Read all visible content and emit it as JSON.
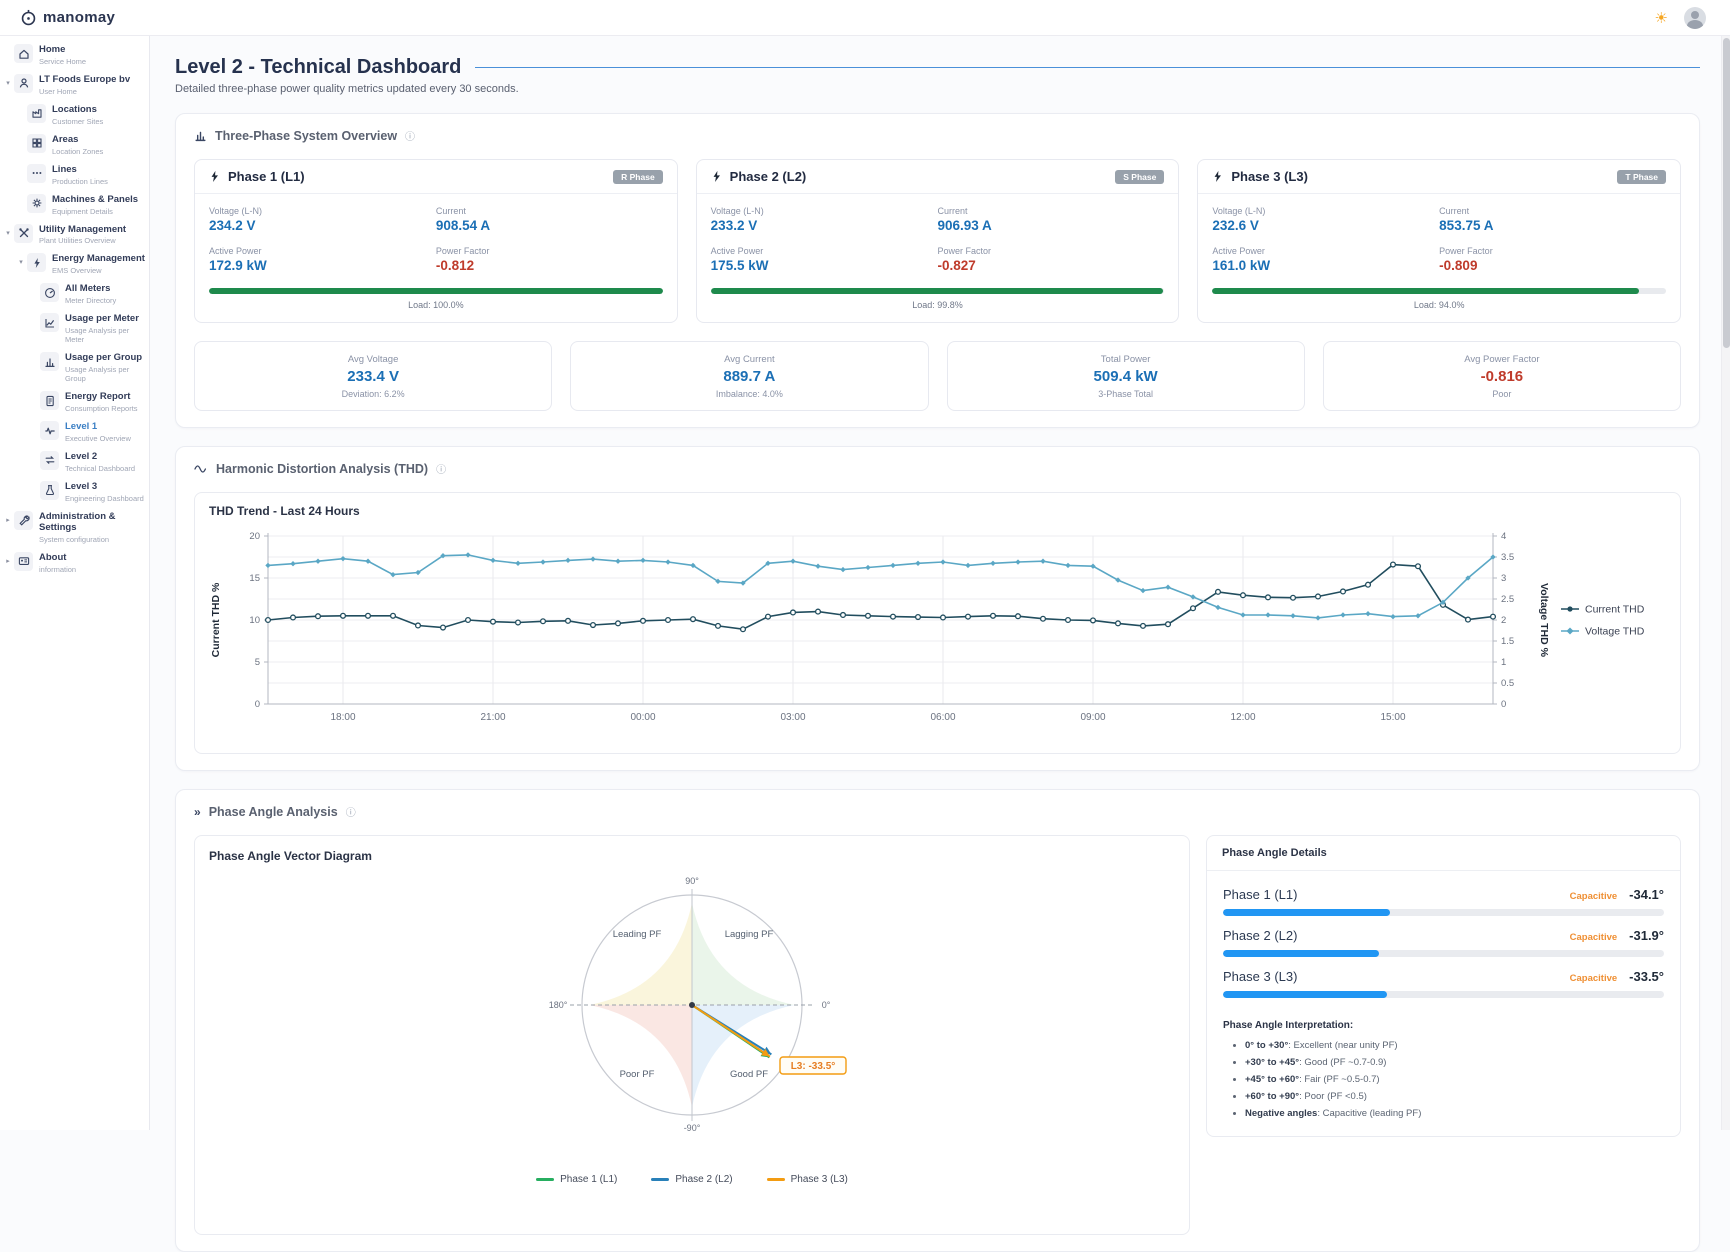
{
  "app": {
    "brand": "manomay"
  },
  "topbar": {
    "theme_icon": "☀"
  },
  "colors": {
    "accent_blue": "#4a90d9",
    "value_blue": "#1b6fb5",
    "value_red": "#bf3b2b",
    "load_green": "#1e8a4c",
    "bar_blue": "#2196f3",
    "capacitive_orange": "#ef8f33",
    "series_current": "#214d5e",
    "series_voltage": "#5aa7c5",
    "arrow_l1": "#27ae60",
    "arrow_l2": "#2980b9",
    "arrow_l3": "#f39c12"
  },
  "sidebar": {
    "items": [
      {
        "title": "Home",
        "subtitle": "Service Home",
        "icon": "home",
        "level": 0,
        "chevron": ""
      },
      {
        "title": "LT Foods Europe bv",
        "subtitle": "User Home",
        "icon": "user",
        "level": 0,
        "chevron": "down"
      },
      {
        "title": "Locations",
        "subtitle": "Customer Sites",
        "icon": "locations",
        "level": 1,
        "chevron": ""
      },
      {
        "title": "Areas",
        "subtitle": "Location Zones",
        "icon": "areas",
        "level": 1,
        "chevron": ""
      },
      {
        "title": "Lines",
        "subtitle": "Production Lines",
        "icon": "lines",
        "level": 1,
        "chevron": ""
      },
      {
        "title": "Machines & Panels",
        "subtitle": "Equipment Details",
        "icon": "machines",
        "level": 1,
        "chevron": ""
      },
      {
        "title": "Utility Management",
        "subtitle": "Plant Utilities Overview",
        "icon": "utility",
        "level": 0,
        "chevron": "down"
      },
      {
        "title": "Energy Management",
        "subtitle": "EMS Overview",
        "icon": "energy",
        "level": 1,
        "chevron": "down"
      },
      {
        "title": "All Meters",
        "subtitle": "Meter Directory",
        "icon": "meters",
        "level": 2,
        "chevron": ""
      },
      {
        "title": "Usage per Meter",
        "subtitle": "Usage Analysis per Meter",
        "icon": "usage-meter",
        "level": 2,
        "chevron": ""
      },
      {
        "title": "Usage per Group",
        "subtitle": "Usage Analysis per Group",
        "icon": "usage-group",
        "level": 2,
        "chevron": ""
      },
      {
        "title": "Energy Report",
        "subtitle": "Consumption Reports",
        "icon": "report",
        "level": 2,
        "chevron": ""
      },
      {
        "title": "Level 1",
        "subtitle": "Executive Overview",
        "icon": "wave",
        "level": 2,
        "chevron": "",
        "highlight": true
      },
      {
        "title": "Level 2",
        "subtitle": "Technical Dashboard",
        "icon": "swap",
        "level": 2,
        "chevron": ""
      },
      {
        "title": "Level 3",
        "subtitle": "Engineering Dashboard",
        "icon": "flask",
        "level": 2,
        "chevron": ""
      },
      {
        "title": "Administration & Settings",
        "subtitle": "System configuration",
        "icon": "wrench",
        "level": 0,
        "chevron": "right"
      },
      {
        "title": "About",
        "subtitle": "information",
        "icon": "card",
        "level": 0,
        "chevron": "right"
      }
    ]
  },
  "page": {
    "title": "Level 2 - Technical Dashboard",
    "subtitle": "Detailed three-phase power quality metrics updated every 30 seconds."
  },
  "overview": {
    "section_title": "Three-Phase System Overview",
    "labels": {
      "voltage": "Voltage (L-N)",
      "current": "Current",
      "power": "Active Power",
      "pf": "Power Factor"
    },
    "phases": [
      {
        "name": "Phase 1 (L1)",
        "badge": "R Phase",
        "voltage": "234.2 V",
        "current": "908.54 A",
        "power": "172.9 kW",
        "pf": "-0.812",
        "load_label": "Load: 100.0%",
        "load_pct": 100.0
      },
      {
        "name": "Phase 2 (L2)",
        "badge": "S Phase",
        "voltage": "233.2 V",
        "current": "906.93 A",
        "power": "175.5 kW",
        "pf": "-0.827",
        "load_label": "Load: 99.8%",
        "load_pct": 99.8
      },
      {
        "name": "Phase 3 (L3)",
        "badge": "T Phase",
        "voltage": "232.6 V",
        "current": "853.75 A",
        "power": "161.0 kW",
        "pf": "-0.809",
        "load_label": "Load: 94.0%",
        "load_pct": 94.0
      }
    ],
    "summary": [
      {
        "label": "Avg Voltage",
        "value": "233.4 V",
        "sub": "Deviation: 6.2%",
        "tone": "blue"
      },
      {
        "label": "Avg Current",
        "value": "889.7 A",
        "sub": "Imbalance: 4.0%",
        "tone": "blue"
      },
      {
        "label": "Total Power",
        "value": "509.4 kW",
        "sub": "3-Phase Total",
        "tone": "blue"
      },
      {
        "label": "Avg Power Factor",
        "value": "-0.816",
        "sub": "Poor",
        "tone": "red"
      }
    ]
  },
  "thd": {
    "section_title": "Harmonic Distortion Analysis (THD)",
    "chart_title": "THD Trend - Last 24 Hours"
  },
  "chart_data": {
    "type": "line",
    "title": "THD Trend - Last 24 Hours",
    "n_points": 50,
    "x_tick_labels": [
      "18:00",
      "21:00",
      "00:00",
      "03:00",
      "06:00",
      "09:00",
      "12:00",
      "15:00"
    ],
    "x_tick_indices": [
      3,
      9,
      15,
      21,
      27,
      33,
      39,
      45
    ],
    "left_axis": {
      "label": "Current THD %",
      "min": 0,
      "max": 20,
      "ticks": [
        0,
        5,
        10,
        15,
        20
      ]
    },
    "right_axis": {
      "label": "Voltage THD %",
      "min": 0,
      "max": 4,
      "ticks": [
        0,
        0.5,
        1,
        1.5,
        2,
        2.5,
        3,
        3.5,
        4
      ]
    },
    "grid": true,
    "legend_position": "right",
    "series": [
      {
        "name": "Current THD",
        "axis": "left",
        "marker": "circle",
        "values": [
          10.0,
          10.3,
          10.45,
          10.5,
          10.5,
          10.5,
          9.35,
          9.1,
          10.0,
          9.8,
          9.7,
          9.85,
          9.9,
          9.4,
          9.6,
          9.9,
          10.0,
          10.1,
          9.3,
          8.9,
          10.4,
          10.9,
          11.0,
          10.6,
          10.5,
          10.4,
          10.35,
          10.3,
          10.4,
          10.5,
          10.45,
          10.15,
          10.0,
          9.95,
          9.6,
          9.3,
          9.5,
          11.4,
          13.35,
          12.95,
          12.7,
          12.65,
          12.8,
          13.4,
          14.2,
          16.6,
          16.4,
          11.8,
          10.05,
          10.4
        ]
      },
      {
        "name": "Voltage THD",
        "axis": "right",
        "marker": "diamond",
        "values": [
          3.3,
          3.34,
          3.4,
          3.46,
          3.4,
          3.08,
          3.13,
          3.53,
          3.55,
          3.42,
          3.35,
          3.38,
          3.42,
          3.45,
          3.4,
          3.42,
          3.38,
          3.3,
          2.92,
          2.88,
          3.35,
          3.4,
          3.28,
          3.2,
          3.25,
          3.3,
          3.35,
          3.38,
          3.3,
          3.35,
          3.38,
          3.4,
          3.3,
          3.28,
          2.95,
          2.7,
          2.78,
          2.55,
          2.3,
          2.12,
          2.12,
          2.1,
          2.05,
          2.12,
          2.15,
          2.08,
          2.1,
          2.42,
          3.0,
          3.5
        ]
      }
    ]
  },
  "phase_angle": {
    "section_title": "Phase Angle Analysis",
    "vector": {
      "title": "Phase Angle Vector Diagram",
      "axis_labels": {
        "top": "90°",
        "right": "0°",
        "left": "180°",
        "bottom": "-90°"
      },
      "quadrants": {
        "top_left": "Leading PF",
        "top_right": "Lagging PF",
        "bottom_left": "Poor PF",
        "bottom_right": "Good PF"
      },
      "annotation": "L3: -33.5°",
      "legend": [
        "Phase 1 (L1)",
        "Phase 2 (L2)",
        "Phase 3 (L3)"
      ]
    },
    "details": {
      "title": "Phase Angle Details",
      "phases": [
        {
          "name": "Phase 1 (L1)",
          "state": "Capacitive",
          "angle": "-34.1°",
          "angle_deg": -34.1
        },
        {
          "name": "Phase 2 (L2)",
          "state": "Capacitive",
          "angle": "-31.9°",
          "angle_deg": -31.9
        },
        {
          "name": "Phase 3 (L3)",
          "state": "Capacitive",
          "angle": "-33.5°",
          "angle_deg": -33.5
        }
      ],
      "interpretation_title": "Phase Angle Interpretation:",
      "interpretation": [
        {
          "range": "0° to +30°",
          "desc": ": Excellent (near unity PF)"
        },
        {
          "range": "+30° to +45°",
          "desc": ": Good (PF ~0.7-0.9)"
        },
        {
          "range": "+45° to +60°",
          "desc": ": Fair (PF ~0.5-0.7)"
        },
        {
          "range": "+60° to +90°",
          "desc": ": Poor (PF <0.5)"
        },
        {
          "range": "Negative angles",
          "desc": ": Capacitive (leading PF)"
        }
      ]
    }
  }
}
